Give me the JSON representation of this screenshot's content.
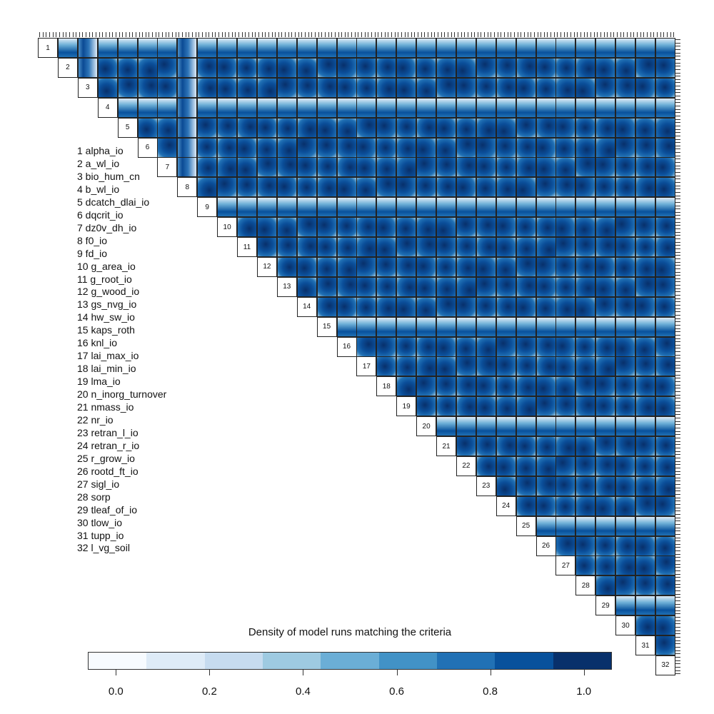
{
  "chart_data": {
    "type": "heatmap",
    "title": "Density of model runs matching the criteria",
    "variables": [
      "alpha_io",
      "a_wl_io",
      "bio_hum_cn",
      "b_wl_io",
      "dcatch_dlai_io",
      "dqcrit_io",
      "dz0v_dh_io",
      "f0_io",
      "fd_io",
      "g_area_io",
      "g_root_io",
      "g_wood_io",
      "gs_nvg_io",
      "hw_sw_io",
      "kaps_roth",
      "knl_io",
      "lai_max_io",
      "lai_min_io",
      "lma_io",
      "n_inorg_turnover",
      "nmass_io",
      "nr_io",
      "retran_l_io",
      "retran_r_io",
      "r_grow_io",
      "rootd_ft_io",
      "sigl_io",
      "sorp",
      "tleaf_of_io",
      "tlow_io",
      "tupp_io",
      "l_vg_soil"
    ],
    "variable_labels": [
      "1 alpha_io",
      "2 a_wl_io",
      "3 bio_hum_cn",
      "4 b_wl_io",
      "5 dcatch_dlai_io",
      "6 dqcrit_io",
      "7 dz0v_dh_io",
      "8 f0_io",
      "9 fd_io",
      "10 g_area_io",
      "11 g_root_io",
      "12 g_wood_io",
      "13 gs_nvg_io",
      "14 hw_sw_io",
      "15 kaps_roth",
      "16 knl_io",
      "17 lai_max_io",
      "18 lai_min_io",
      "19 lma_io",
      "20 n_inorg_turnover",
      "21 nmass_io",
      "22 nr_io",
      "23 retran_l_io",
      "24 retran_r_io",
      "25 r_grow_io",
      "26 rootd_ft_io",
      "27 sigl_io",
      "28 sorp",
      "29 tleaf_of_io",
      "30 tlow_io",
      "31 tupp_io",
      "32 l_vg_soil"
    ],
    "diag_numbers": [
      "1",
      "2",
      "3",
      "4",
      "5",
      "6",
      "7",
      "8",
      "9",
      "10",
      "11",
      "12",
      "13",
      "14",
      "15",
      "16",
      "17",
      "18",
      "19",
      "20",
      "21",
      "22",
      "23",
      "24",
      "25",
      "26",
      "27",
      "28",
      "29",
      "30",
      "31",
      "32"
    ],
    "colorbar": {
      "range": [
        -0.06,
        1.06
      ],
      "ticks": [
        "0.0",
        "0.2",
        "0.4",
        "0.6",
        "0.8",
        "1.0"
      ],
      "tick_values": [
        0,
        0.2,
        0.4,
        0.6,
        0.8,
        1.0
      ],
      "colors": [
        "#f7fbff",
        "#deebf7",
        "#c6dbef",
        "#9ecae1",
        "#6baed6",
        "#4292c6",
        "#2171b5",
        "#08519c",
        "#08306b"
      ]
    },
    "banded_rows": [
      1,
      4,
      9,
      15,
      20,
      25,
      29
    ],
    "banded_cols": [
      3,
      8
    ]
  }
}
